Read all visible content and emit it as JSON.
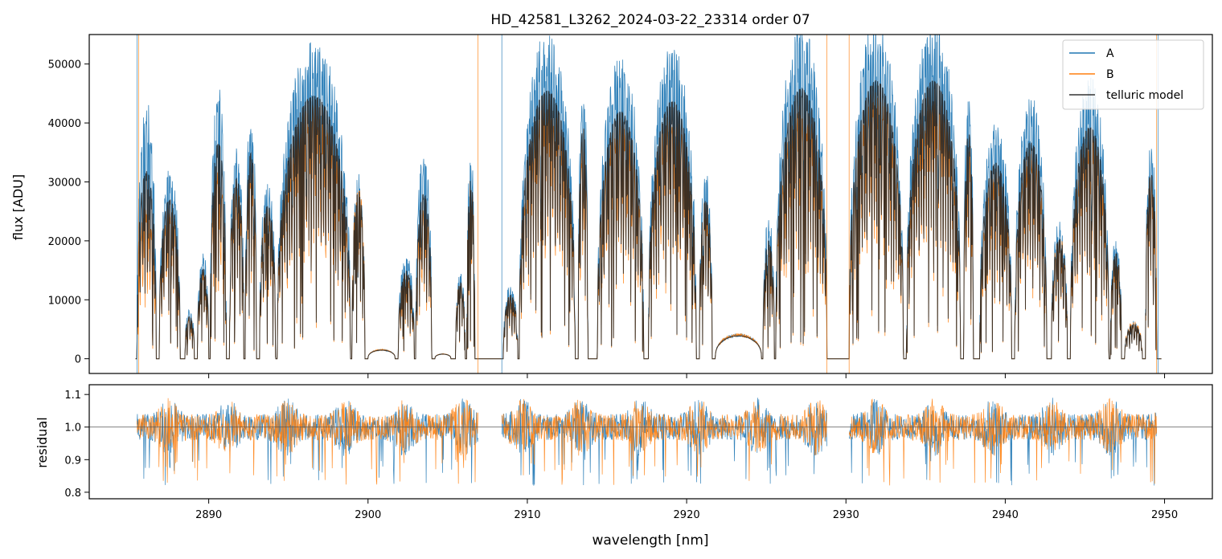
{
  "figure_title": "HD_42581_L3262_2024-03-22_23314  order 07",
  "chart_data": [
    {
      "type": "line",
      "panel": "flux",
      "title": "HD_42581_L3262_2024-03-22_23314  order 07",
      "xlabel": "",
      "ylabel": "flux [ADU]",
      "xlim": [
        2882.5,
        2953.0
      ],
      "ylim": [
        -2500,
        55000
      ],
      "yticks": [
        0,
        10000,
        20000,
        30000,
        40000,
        50000
      ],
      "ytick_labels": [
        "0",
        "10000",
        "20000",
        "30000",
        "40000",
        "50000"
      ],
      "xticks": [
        2890,
        2900,
        2910,
        2920,
        2930,
        2940,
        2950
      ],
      "legend": {
        "position": "top-right",
        "entries": [
          "A",
          "B",
          "telluric model"
        ]
      },
      "series": [
        {
          "name": "A",
          "color": "#1f77b4"
        },
        {
          "name": "B",
          "color": "#ff7f0e"
        },
        {
          "name": "telluric model",
          "color": "#333333"
        }
      ],
      "windows": [
        {
          "x": [
            2885.5,
            2886.7
          ],
          "peak": 41000,
          "ratio": 0.6
        },
        {
          "x": [
            2886.9,
            2888.2
          ],
          "peak": 31000,
          "ratio": 0.8
        },
        {
          "x": [
            2888.5,
            2889.1
          ],
          "peak": 8000,
          "ratio": 0.85
        },
        {
          "x": [
            2889.3,
            2890.0
          ],
          "peak": 17000,
          "ratio": 0.85
        },
        {
          "x": [
            2890.1,
            2891.1
          ],
          "peak": 44000,
          "ratio": 0.72
        },
        {
          "x": [
            2891.3,
            2892.2
          ],
          "peak": 34000,
          "ratio": 0.85
        },
        {
          "x": [
            2892.3,
            2893.0
          ],
          "peak": 40000,
          "ratio": 0.8
        },
        {
          "x": [
            2893.2,
            2894.2
          ],
          "peak": 29000,
          "ratio": 0.85
        },
        {
          "x": [
            2894.3,
            2898.9
          ],
          "peak": 51000,
          "ratio": 0.8
        },
        {
          "x": [
            2899.0,
            2899.8
          ],
          "peak": 30000,
          "ratio": 0.95
        },
        {
          "x": [
            2900.0,
            2901.7
          ],
          "peak": 1500,
          "ratio": 1.0
        },
        {
          "x": [
            2901.9,
            2902.9
          ],
          "peak": 17000,
          "ratio": 0.8
        },
        {
          "x": [
            2903.0,
            2904.0
          ],
          "peak": 33000,
          "ratio": 0.75
        },
        {
          "x": [
            2904.2,
            2905.2
          ],
          "peak": 800,
          "ratio": 1.0
        },
        {
          "x": [
            2905.5,
            2906.1
          ],
          "peak": 14000,
          "ratio": 0.9
        },
        {
          "x": [
            2906.2,
            2906.7
          ],
          "peak": 34000,
          "ratio": 0.85
        },
        {
          "x": [
            2908.5,
            2909.4
          ],
          "peak": 12000,
          "ratio": 0.85
        },
        {
          "x": [
            2909.5,
            2913.0
          ],
          "peak": 52000,
          "ratio": 0.8
        },
        {
          "x": [
            2913.2,
            2913.8
          ],
          "peak": 45000,
          "ratio": 0.8
        },
        {
          "x": [
            2914.4,
            2917.3
          ],
          "peak": 48000,
          "ratio": 0.8
        },
        {
          "x": [
            2917.6,
            2920.6
          ],
          "peak": 50000,
          "ratio": 0.8
        },
        {
          "x": [
            2920.8,
            2921.6
          ],
          "peak": 30000,
          "ratio": 0.85
        },
        {
          "x": [
            2921.8,
            2924.7
          ],
          "peak": 4000,
          "ratio": 1.0
        },
        {
          "x": [
            2924.8,
            2925.5
          ],
          "peak": 23000,
          "ratio": 0.8
        },
        {
          "x": [
            2925.6,
            2928.8
          ],
          "peak": 54000,
          "ratio": 0.75
        },
        {
          "x": [
            2930.2,
            2933.6
          ],
          "peak": 54000,
          "ratio": 0.8
        },
        {
          "x": [
            2933.8,
            2937.2
          ],
          "peak": 54000,
          "ratio": 0.8
        },
        {
          "x": [
            2937.4,
            2938.0
          ],
          "peak": 44000,
          "ratio": 0.8
        },
        {
          "x": [
            2938.4,
            2940.4
          ],
          "peak": 38000,
          "ratio": 0.8
        },
        {
          "x": [
            2940.6,
            2942.6
          ],
          "peak": 42000,
          "ratio": 0.8
        },
        {
          "x": [
            2942.9,
            2943.9
          ],
          "peak": 22000,
          "ratio": 0.9
        },
        {
          "x": [
            2944.1,
            2946.5
          ],
          "peak": 45000,
          "ratio": 0.8
        },
        {
          "x": [
            2946.6,
            2947.3
          ],
          "peak": 20000,
          "ratio": 0.85
        },
        {
          "x": [
            2947.5,
            2948.6
          ],
          "peak": 6000,
          "ratio": 1.0
        },
        {
          "x": [
            2948.8,
            2949.5
          ],
          "peak": 35000,
          "ratio": 0.85
        }
      ]
    },
    {
      "type": "line",
      "panel": "residual",
      "xlabel": "wavelength [nm]",
      "ylabel": "residual",
      "xlim": [
        2882.5,
        2953.0
      ],
      "ylim": [
        0.78,
        1.13
      ],
      "yticks": [
        0.8,
        0.9,
        1.0,
        1.1
      ],
      "ytick_labels": [
        "0.8",
        "0.9",
        "1.0",
        "1.1"
      ],
      "xticks": [
        2890,
        2900,
        2910,
        2920,
        2930,
        2940,
        2950
      ],
      "xtick_labels": [
        "2890",
        "2900",
        "2910",
        "2920",
        "2930",
        "2940",
        "2950"
      ],
      "reference_line": 1.0,
      "segments": [
        [
          2885.5,
          2906.9
        ],
        [
          2908.4,
          2928.8
        ],
        [
          2930.2,
          2949.5
        ]
      ],
      "series": [
        {
          "name": "A",
          "color": "#1f77b4"
        },
        {
          "name": "B",
          "color": "#ff7f0e"
        }
      ]
    }
  ]
}
